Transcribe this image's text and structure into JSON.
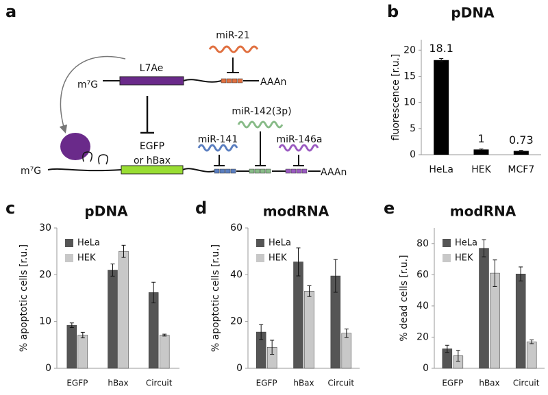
{
  "diagram": {
    "panel": "a",
    "top_cap": "m⁷G",
    "top_protein": "L7Ae",
    "top_mirna": "miR-21",
    "top_tail": "AAAn",
    "bottom_cap": "m⁷G",
    "reporter_1": "EGFP",
    "reporter_2": "or hBax",
    "mirna_1": "miR-141",
    "mirna_2": "miR-142(3p)",
    "mirna_3": "miR-146a",
    "bottom_tail": "AAAn"
  },
  "chart_data": [
    {
      "type": "bar",
      "panel": "b",
      "title": "pDNA",
      "y_label": "fluorescence [r.u.]",
      "categories": [
        "HeLa",
        "HEK",
        "MCF7"
      ],
      "values": [
        18.1,
        1,
        0.73
      ],
      "errors": [
        0.3,
        0.1,
        0.1
      ],
      "color": "#000000",
      "ylim": [
        0,
        22
      ],
      "yticks": [
        0,
        5,
        10,
        15,
        20
      ],
      "value_labels_shown": true
    },
    {
      "type": "grouped-bar",
      "panel": "c",
      "title": "pDNA",
      "y_label": "% apoptotic cells [r.u.]",
      "categories": [
        "EGFP",
        "hBax",
        "Circuit"
      ],
      "series": [
        {
          "name": "HeLa",
          "color": "#555555",
          "values": [
            9.2,
            21,
            16.2
          ],
          "errors": [
            0.5,
            1.3,
            2.2
          ]
        },
        {
          "name": "HEK",
          "color": "#c8c8c8",
          "values": [
            7.1,
            25,
            7.1
          ],
          "errors": [
            0.6,
            1.3,
            0.2
          ]
        }
      ],
      "ylim": [
        0,
        30
      ],
      "yticks": [
        0,
        10,
        20,
        30
      ],
      "legend": "top-left"
    },
    {
      "type": "grouped-bar",
      "panel": "d",
      "title": "modRNA",
      "y_label": "% apoptotic cells [r.u.]",
      "categories": [
        "EGFP",
        "hBax",
        "Circuit"
      ],
      "series": [
        {
          "name": "HeLa",
          "color": "#555555",
          "values": [
            15.5,
            45.5,
            39.5
          ],
          "errors": [
            3.2,
            6,
            7
          ]
        },
        {
          "name": "HEK",
          "color": "#c8c8c8",
          "values": [
            9,
            33,
            15
          ],
          "errors": [
            3,
            2.3,
            1.8
          ]
        }
      ],
      "ylim": [
        0,
        60
      ],
      "yticks": [
        0,
        20,
        40,
        60
      ],
      "legend": "top-left"
    },
    {
      "type": "grouped-bar",
      "panel": "e",
      "title": "modRNA",
      "y_label": "% dead cells [r.u.]",
      "categories": [
        "EGFP",
        "hBax",
        "Circuit"
      ],
      "series": [
        {
          "name": "HeLa",
          "color": "#555555",
          "values": [
            12.5,
            77,
            60.5
          ],
          "errors": [
            2.3,
            5.5,
            4.5
          ]
        },
        {
          "name": "HEK",
          "color": "#c8c8c8",
          "values": [
            8,
            61,
            17
          ],
          "errors": [
            3.5,
            8.5,
            1.2
          ]
        }
      ],
      "ylim": [
        0,
        90
      ],
      "yticks": [
        0,
        20,
        40,
        60,
        80
      ],
      "legend": "top-left"
    }
  ]
}
